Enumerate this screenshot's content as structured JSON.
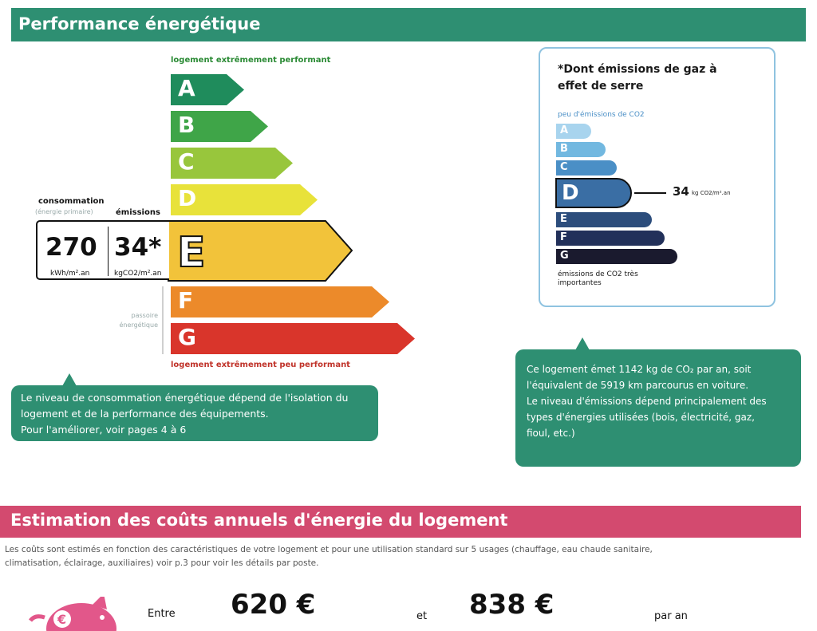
{
  "performance_header": "Performance énergétique",
  "energy_scale": {
    "top_caption": "logement extrêmement performant",
    "bottom_caption": "logement extrêmement peu performant",
    "passoire_caption": "passoire énergétique",
    "classes": [
      {
        "letter": "A",
        "color": "#1f8c5c"
      },
      {
        "letter": "B",
        "color": "#3fa548"
      },
      {
        "letter": "C",
        "color": "#98c63c"
      },
      {
        "letter": "D",
        "color": "#e8e23a"
      },
      {
        "letter": "E",
        "color": "#f2c33a"
      },
      {
        "letter": "F",
        "color": "#ec8a2a"
      },
      {
        "letter": "G",
        "color": "#d9352b"
      }
    ],
    "current_class": "E"
  },
  "consumption": {
    "label": "consommation",
    "sublabel": "(énergie primaire)",
    "value": "270",
    "unit": "kWh/m².an"
  },
  "emissions": {
    "label": "émissions",
    "value": "34*",
    "unit": "kgCO2/m².an"
  },
  "ghg": {
    "title": "*Dont émissions de gaz à effet de serre",
    "top_caption": "peu d'émissions de CO2",
    "bottom_caption": "émissions de CO2 très importantes",
    "classes": [
      {
        "letter": "A",
        "color": "#a8d4ee"
      },
      {
        "letter": "B",
        "color": "#72b8e0"
      },
      {
        "letter": "C",
        "color": "#4a8fc6"
      },
      {
        "letter": "D",
        "color": "#3a6ea4"
      },
      {
        "letter": "E",
        "color": "#2c4d7c"
      },
      {
        "letter": "F",
        "color": "#22305a"
      },
      {
        "letter": "G",
        "color": "#1a1a2e"
      }
    ],
    "current_class": "D",
    "value": "34",
    "unit": "kg CO2/m².an"
  },
  "callout_consumption": {
    "lines": [
      "Le niveau de consommation énergétique dépend de l'isolation du",
      "logement et de la performance des équipements.",
      "Pour l'améliorer, voir pages 4 à 6"
    ]
  },
  "callout_emissions": {
    "lines": [
      "Ce logement émet 1142 kg de CO₂ par an, soit",
      "l'équivalent de 5919  km parcourus en voiture.",
      "Le niveau d'émissions dépend principalement des",
      "types d'énergies utilisées (bois, électricité, gaz,",
      "fioul, etc.)"
    ]
  },
  "estimation": {
    "header": "Estimation des coûts annuels d'énergie du logement",
    "description_line1": "Les coûts sont estimés en fonction des caractéristiques de votre logement et pour une utilisation standard sur 5 usages (chauffage, eau chaude sanitaire,",
    "description_line2": "climatisation, éclairage, auxiliaires) voir p.3 pour voir les détails par poste.",
    "between_label": "Entre",
    "min_cost": "620 €",
    "and_label": "et",
    "max_cost": "838 €",
    "per_year": "par an"
  },
  "icons": [
    "piggy-bank-icon"
  ]
}
